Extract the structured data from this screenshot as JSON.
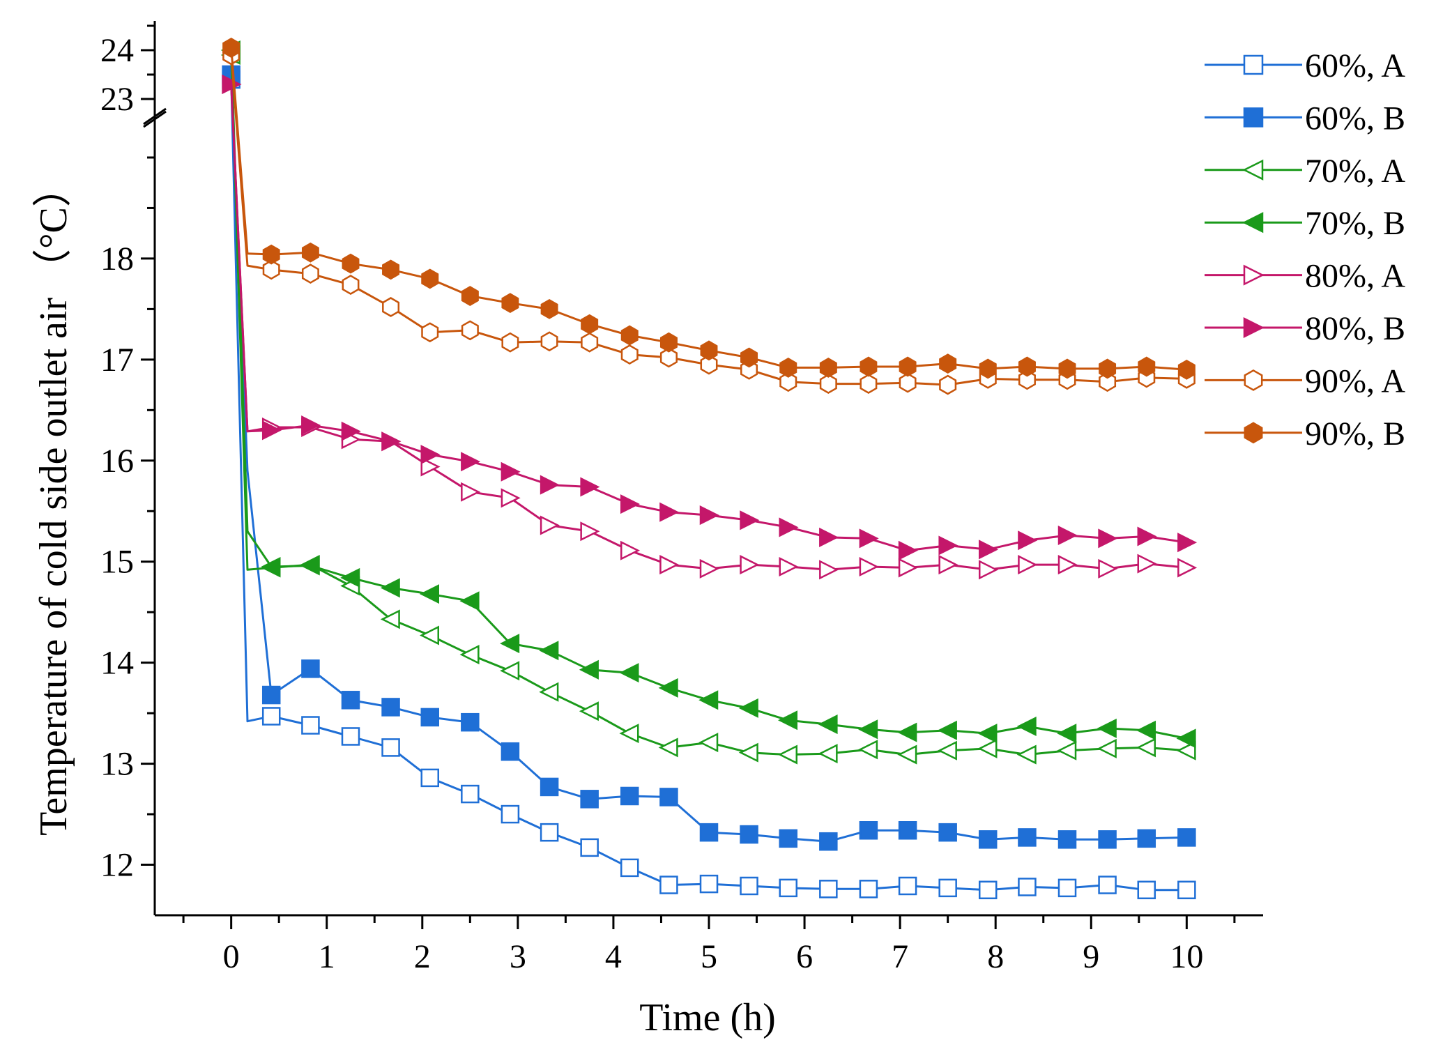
{
  "chart_data": {
    "type": "line",
    "title": "",
    "xlabel": "Time (h)",
    "ylabel": "Temperature of cold side outlet air （°C）",
    "xlim": [
      -0.8,
      10.8
    ],
    "xticks": [
      0,
      1,
      2,
      3,
      4,
      5,
      6,
      7,
      8,
      9,
      10
    ],
    "xtick_labels": [
      "0",
      "1",
      "2",
      "3",
      "4",
      "5",
      "6",
      "7",
      "8",
      "9",
      "10"
    ],
    "y_lower_range": [
      11.5,
      19.4
    ],
    "y_upper_range": [
      22.6,
      24.6
    ],
    "y_axis_break": [
      19.4,
      22.6
    ],
    "yticks": [
      12,
      13,
      14,
      15,
      16,
      17,
      18,
      23,
      24
    ],
    "ytick_labels": [
      "12",
      "13",
      "14",
      "15",
      "16",
      "17",
      "18",
      "23",
      "24"
    ],
    "grid": false,
    "legend_position": "top-right",
    "series": [
      {
        "name": "60%, A",
        "color": "#1f6fd6",
        "marker": "square",
        "filled": false,
        "x": [
          0,
          0.17,
          0.42,
          0.83,
          1.25,
          1.67,
          2.08,
          2.5,
          2.92,
          3.33,
          3.75,
          4.17,
          4.58,
          5.0,
          5.42,
          5.83,
          6.25,
          6.67,
          7.08,
          7.5,
          7.92,
          8.33,
          8.75,
          9.17,
          9.58,
          10.0
        ],
        "y": [
          23.4,
          13.42,
          13.47,
          13.38,
          13.27,
          13.16,
          12.86,
          12.7,
          12.5,
          12.32,
          12.17,
          11.97,
          11.8,
          11.81,
          11.79,
          11.77,
          11.76,
          11.76,
          11.79,
          11.77,
          11.75,
          11.78,
          11.77,
          11.8,
          11.75,
          11.75
        ]
      },
      {
        "name": "60%, B",
        "color": "#1f6fd6",
        "marker": "square",
        "filled": true,
        "x": [
          0,
          0.17,
          0.42,
          0.83,
          1.25,
          1.67,
          2.08,
          2.5,
          2.92,
          3.33,
          3.75,
          4.17,
          4.58,
          5.0,
          5.42,
          5.83,
          6.25,
          6.67,
          7.08,
          7.5,
          7.92,
          8.33,
          8.75,
          9.17,
          9.58,
          10.0
        ],
        "y": [
          23.5,
          15.9,
          13.68,
          13.94,
          13.63,
          13.56,
          13.46,
          13.41,
          13.12,
          12.77,
          12.65,
          12.68,
          12.67,
          12.32,
          12.3,
          12.26,
          12.23,
          12.34,
          12.34,
          12.32,
          12.25,
          12.27,
          12.25,
          12.25,
          12.26,
          12.27
        ]
      },
      {
        "name": "70%, A",
        "color": "#1a9a1a",
        "marker": "triangle-left",
        "filled": false,
        "x": [
          0,
          0.17,
          0.42,
          0.83,
          1.25,
          1.67,
          2.08,
          2.5,
          2.92,
          3.33,
          3.75,
          4.17,
          4.58,
          5.0,
          5.42,
          5.83,
          6.25,
          6.67,
          7.08,
          7.5,
          7.92,
          8.33,
          8.75,
          9.17,
          9.58,
          10.0
        ],
        "y": [
          23.9,
          14.92,
          14.94,
          14.97,
          14.76,
          14.43,
          14.27,
          14.08,
          13.92,
          13.71,
          13.52,
          13.3,
          13.16,
          13.21,
          13.11,
          13.09,
          13.1,
          13.14,
          13.09,
          13.13,
          13.15,
          13.09,
          13.13,
          13.15,
          13.16,
          13.13
        ]
      },
      {
        "name": "70%, B",
        "color": "#1a9a1a",
        "marker": "triangle-left",
        "filled": true,
        "x": [
          0,
          0.17,
          0.42,
          0.83,
          1.25,
          1.67,
          2.08,
          2.5,
          2.92,
          3.33,
          3.75,
          4.17,
          4.58,
          5.0,
          5.42,
          5.83,
          6.25,
          6.67,
          7.08,
          7.5,
          7.92,
          8.33,
          8.75,
          9.17,
          9.58,
          10.0
        ],
        "y": [
          24.0,
          15.3,
          14.95,
          14.96,
          14.84,
          14.74,
          14.68,
          14.61,
          14.19,
          14.12,
          13.93,
          13.9,
          13.75,
          13.63,
          13.55,
          13.43,
          13.39,
          13.34,
          13.31,
          13.33,
          13.3,
          13.37,
          13.3,
          13.35,
          13.33,
          13.25
        ]
      },
      {
        "name": "80%, A",
        "color": "#c4176a",
        "marker": "triangle-right",
        "filled": false,
        "x": [
          0,
          0.17,
          0.42,
          0.83,
          1.25,
          1.67,
          2.08,
          2.5,
          2.92,
          3.33,
          3.75,
          4.17,
          4.58,
          5.0,
          5.42,
          5.83,
          6.25,
          6.67,
          7.08,
          7.5,
          7.92,
          8.33,
          8.75,
          9.17,
          9.58,
          10.0
        ],
        "y": [
          23.3,
          16.29,
          16.33,
          16.33,
          16.21,
          16.19,
          15.94,
          15.69,
          15.63,
          15.36,
          15.3,
          15.11,
          14.97,
          14.93,
          14.97,
          14.95,
          14.92,
          14.95,
          14.94,
          14.97,
          14.92,
          14.97,
          14.97,
          14.93,
          14.98,
          14.94
        ]
      },
      {
        "name": "80%, B",
        "color": "#c4176a",
        "marker": "triangle-right",
        "filled": true,
        "x": [
          0,
          0.17,
          0.42,
          0.83,
          1.25,
          1.67,
          2.08,
          2.5,
          2.92,
          3.33,
          3.75,
          4.17,
          4.58,
          5.0,
          5.42,
          5.83,
          6.25,
          6.67,
          7.08,
          7.5,
          7.92,
          8.33,
          8.75,
          9.17,
          9.58,
          10.0
        ],
        "y": [
          23.3,
          16.29,
          16.3,
          16.35,
          16.29,
          16.19,
          16.06,
          15.99,
          15.89,
          15.76,
          15.74,
          15.57,
          15.49,
          15.46,
          15.41,
          15.34,
          15.24,
          15.23,
          15.11,
          15.16,
          15.12,
          15.21,
          15.26,
          15.23,
          15.25,
          15.19
        ]
      },
      {
        "name": "90%, A",
        "color": "#c8560c",
        "marker": "hexagon",
        "filled": false,
        "x": [
          0,
          0.17,
          0.42,
          0.83,
          1.25,
          1.67,
          2.08,
          2.5,
          2.92,
          3.33,
          3.75,
          4.17,
          4.58,
          5.0,
          5.42,
          5.83,
          6.25,
          6.67,
          7.08,
          7.5,
          7.92,
          8.33,
          8.75,
          9.17,
          9.58,
          10.0
        ],
        "y": [
          23.9,
          17.93,
          17.89,
          17.85,
          17.74,
          17.52,
          17.27,
          17.29,
          17.17,
          17.18,
          17.17,
          17.05,
          17.02,
          16.95,
          16.9,
          16.78,
          16.76,
          16.76,
          16.77,
          16.75,
          16.81,
          16.8,
          16.8,
          16.78,
          16.82,
          16.81
        ]
      },
      {
        "name": "90%, B",
        "color": "#c8560c",
        "marker": "hexagon",
        "filled": true,
        "x": [
          0,
          0.17,
          0.42,
          0.83,
          1.25,
          1.67,
          2.08,
          2.5,
          2.92,
          3.33,
          3.75,
          4.17,
          4.58,
          5.0,
          5.42,
          5.83,
          6.25,
          6.67,
          7.08,
          7.5,
          7.92,
          8.33,
          8.75,
          9.17,
          9.58,
          10.0
        ],
        "y": [
          24.05,
          18.05,
          18.04,
          18.06,
          17.95,
          17.89,
          17.8,
          17.63,
          17.56,
          17.5,
          17.35,
          17.24,
          17.17,
          17.09,
          17.02,
          16.92,
          16.92,
          16.93,
          16.93,
          16.96,
          16.91,
          16.93,
          16.91,
          16.91,
          16.93,
          16.9
        ]
      }
    ]
  }
}
